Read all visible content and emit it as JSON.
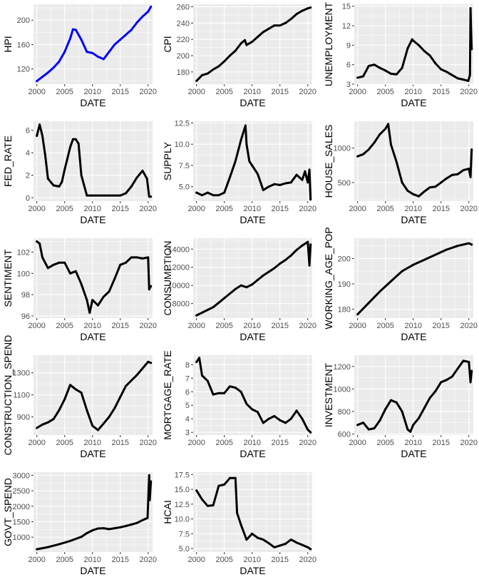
{
  "chart_data": [
    {
      "type": "line",
      "title": "",
      "xlabel": "DATE",
      "ylabel": "HPI",
      "color": "#0000FF",
      "xlim": [
        1999.4,
        2020.8
      ],
      "ylim": [
        95,
        226
      ],
      "xticks": [
        2000,
        2005,
        2010,
        2015,
        2020
      ],
      "yticks": [
        120,
        160,
        200
      ],
      "x": [
        2000,
        2001,
        2002,
        2003,
        2004,
        2005,
        2006,
        2006.5,
        2007,
        2008,
        2009,
        2010,
        2011,
        2012,
        2013,
        2014,
        2015,
        2016,
        2017,
        2018,
        2019,
        2020,
        2020.5
      ],
      "values": [
        100,
        107,
        114,
        122,
        132,
        148,
        170,
        185,
        184,
        168,
        148,
        146,
        140,
        136,
        148,
        160,
        168,
        176,
        184,
        196,
        206,
        214,
        222
      ]
    },
    {
      "type": "line",
      "title": "",
      "xlabel": "DATE",
      "ylabel": "CPI",
      "color": "#000000",
      "xlim": [
        1999.4,
        2020.8
      ],
      "ylim": [
        165,
        263
      ],
      "xticks": [
        2000,
        2005,
        2010,
        2015,
        2020
      ],
      "yticks": [
        180,
        200,
        220,
        240,
        260
      ],
      "x": [
        2000,
        2001,
        2002,
        2003,
        2004,
        2005,
        2006,
        2007,
        2008,
        2008.7,
        2009,
        2010,
        2011,
        2012,
        2013,
        2014,
        2015,
        2016,
        2017,
        2018,
        2019,
        2020,
        2020.5
      ],
      "values": [
        169,
        176,
        178,
        183,
        187,
        193,
        200,
        206,
        215,
        219,
        213,
        217,
        223,
        229,
        233,
        237,
        237,
        240,
        245,
        251,
        255,
        258,
        259
      ]
    },
    {
      "type": "line",
      "title": "",
      "xlabel": "DATE",
      "ylabel": "UNEMPLOYMENT",
      "color": "#000000",
      "xlim": [
        1999.4,
        2020.8
      ],
      "ylim": [
        3,
        15.3
      ],
      "xticks": [
        2000,
        2005,
        2010,
        2015,
        2020
      ],
      "yticks": [
        3,
        6,
        9,
        12,
        15
      ],
      "x": [
        2000,
        2001,
        2002,
        2003,
        2004,
        2005,
        2006,
        2007,
        2008,
        2009,
        2009.8,
        2010,
        2011,
        2012,
        2013,
        2014,
        2015,
        2016,
        2017,
        2018,
        2019,
        2019.9,
        2020.2,
        2020.3,
        2020.4,
        2020.5
      ],
      "values": [
        4.0,
        4.2,
        5.8,
        6.0,
        5.5,
        5.1,
        4.6,
        4.5,
        5.5,
        8.5,
        9.9,
        9.7,
        9.0,
        8.1,
        7.4,
        6.2,
        5.3,
        4.9,
        4.4,
        3.9,
        3.7,
        3.5,
        4.4,
        14.7,
        11.1,
        8.4
      ]
    },
    {
      "type": "line",
      "title": "",
      "xlabel": "DATE",
      "ylabel": "FED_RATE",
      "color": "#000000",
      "xlim": [
        1999.4,
        2020.8
      ],
      "ylim": [
        -0.3,
        6.8
      ],
      "xticks": [
        2000,
        2005,
        2010,
        2015,
        2020
      ],
      "yticks": [
        0,
        2,
        4,
        6
      ],
      "x": [
        2000,
        2000.5,
        2001,
        2001.5,
        2002,
        2003,
        2004,
        2004.5,
        2005,
        2006,
        2006.5,
        2007,
        2007.5,
        2008,
        2009,
        2010,
        2015,
        2016,
        2017,
        2018,
        2019,
        2019.8,
        2020.2,
        2020.5
      ],
      "values": [
        5.5,
        6.5,
        5.5,
        3.8,
        1.7,
        1.1,
        1.0,
        1.4,
        2.5,
        4.5,
        5.2,
        5.2,
        4.8,
        2.0,
        0.2,
        0.2,
        0.2,
        0.4,
        1.0,
        1.8,
        2.4,
        1.7,
        0.1,
        0.1
      ]
    },
    {
      "type": "line",
      "title": "",
      "xlabel": "DATE",
      "ylabel": "SUPPLY",
      "color": "#000000",
      "xlim": [
        1999.4,
        2020.8
      ],
      "ylim": [
        3.3,
        12.7
      ],
      "xticks": [
        2000,
        2005,
        2010,
        2015,
        2020
      ],
      "yticks": [
        5.0,
        7.5,
        10.0,
        12.5
      ],
      "x": [
        2000,
        2001,
        2002,
        2003,
        2004,
        2005,
        2006,
        2007,
        2008,
        2008.8,
        2009,
        2009.5,
        2010,
        2011,
        2012,
        2013,
        2014,
        2015,
        2016,
        2017,
        2018,
        2019,
        2019.5,
        2020,
        2020.3,
        2020.5
      ],
      "values": [
        4.3,
        4.0,
        4.3,
        4.0,
        4.0,
        4.3,
        6.1,
        8.0,
        10.5,
        12.2,
        10.0,
        8.0,
        7.5,
        6.5,
        4.6,
        5.0,
        5.3,
        5.2,
        5.4,
        5.5,
        6.4,
        5.8,
        6.8,
        5.5,
        7.0,
        3.5
      ]
    },
    {
      "type": "line",
      "title": "",
      "xlabel": "DATE",
      "ylabel": "HOUSE_SALES",
      "color": "#000000",
      "xlim": [
        1999.4,
        2020.8
      ],
      "ylim": [
        230,
        1390
      ],
      "xticks": [
        2000,
        2005,
        2010,
        2015,
        2020
      ],
      "yticks": [
        500,
        1000
      ],
      "x": [
        2000,
        2001,
        2002,
        2003,
        2004,
        2005,
        2005.5,
        2006,
        2007,
        2008,
        2009,
        2010,
        2011,
        2012,
        2013,
        2014,
        2015,
        2016,
        2017,
        2018,
        2019,
        2020,
        2020.3,
        2020.5
      ],
      "values": [
        880,
        910,
        980,
        1080,
        1200,
        1280,
        1350,
        1050,
        800,
        500,
        380,
        330,
        300,
        370,
        430,
        440,
        500,
        560,
        610,
        620,
        680,
        700,
        580,
        980
      ]
    },
    {
      "type": "line",
      "title": "",
      "xlabel": "DATE",
      "ylabel": "SENTIMENT",
      "color": "#000000",
      "xlim": [
        1999.4,
        2020.8
      ],
      "ylim": [
        95.8,
        103.3
      ],
      "xticks": [
        2000,
        2005,
        2010,
        2015,
        2020
      ],
      "yticks": [
        96,
        98,
        100,
        102
      ],
      "x": [
        2000,
        2000.5,
        2001,
        2002,
        2003,
        2004,
        2005,
        2006,
        2007,
        2008,
        2009,
        2009.5,
        2010,
        2011,
        2012,
        2013,
        2014,
        2015,
        2016,
        2017,
        2018,
        2019,
        2020,
        2020.2,
        2020.5
      ],
      "values": [
        103.0,
        102.8,
        101.5,
        100.5,
        100.8,
        101.0,
        101.0,
        100.0,
        100.2,
        99.0,
        97.5,
        96.3,
        97.5,
        97.0,
        97.8,
        98.3,
        99.5,
        100.8,
        101.0,
        101.5,
        101.5,
        101.4,
        101.5,
        98.5,
        98.8
      ]
    },
    {
      "type": "line",
      "title": "",
      "xlabel": "DATE",
      "ylabel": "CONSUMPTION",
      "color": "#000000",
      "xlim": [
        1999.4,
        2020.8
      ],
      "ylim": [
        6400,
        15200
      ],
      "xticks": [
        2000,
        2005,
        2010,
        2015,
        2020
      ],
      "yticks": [
        8000,
        10000,
        12000,
        14000
      ],
      "x": [
        2000,
        2001,
        2002,
        2003,
        2004,
        2005,
        2006,
        2007,
        2008,
        2009,
        2010,
        2011,
        2012,
        2013,
        2014,
        2015,
        2016,
        2017,
        2018,
        2019,
        2020,
        2020.3,
        2020.5
      ],
      "values": [
        6700,
        7000,
        7300,
        7600,
        8100,
        8600,
        9100,
        9600,
        10000,
        9800,
        10100,
        10600,
        11100,
        11500,
        11900,
        12400,
        12800,
        13300,
        13900,
        14400,
        14800,
        12200,
        14500
      ]
    },
    {
      "type": "line",
      "title": "",
      "xlabel": "DATE",
      "ylabel": "WORKING_AGE_POP",
      "color": "#000000",
      "xlim": [
        1999.4,
        2020.8
      ],
      "ylim": [
        176.5,
        208
      ],
      "xticks": [
        2000,
        2005,
        2010,
        2015,
        2020
      ],
      "yticks": [
        180,
        190,
        200
      ],
      "x": [
        2000,
        2002,
        2004,
        2006,
        2008,
        2010,
        2012,
        2014,
        2016,
        2018,
        2019,
        2020,
        2020.5
      ],
      "values": [
        178.0,
        182.5,
        187.0,
        191.0,
        195.0,
        197.5,
        199.5,
        201.5,
        203.5,
        205.0,
        205.5,
        206.0,
        205.5
      ]
    },
    {
      "type": "line",
      "title": "",
      "xlabel": "DATE",
      "ylabel": "CONSTRUCTION_SPEND",
      "color": "#000000",
      "xlim": [
        1999.4,
        2020.8
      ],
      "ylim": [
        735,
        1460
      ],
      "xticks": [
        2000,
        2005,
        2010,
        2015,
        2020
      ],
      "yticks": [
        900,
        1100,
        1300
      ],
      "x": [
        2000,
        2001,
        2002,
        2003,
        2004,
        2005,
        2006,
        2007,
        2008,
        2009,
        2010,
        2011,
        2012,
        2013,
        2014,
        2015,
        2016,
        2017,
        2018,
        2019,
        2020,
        2020.5
      ],
      "values": [
        800,
        830,
        850,
        880,
        960,
        1060,
        1190,
        1150,
        1120,
        960,
        820,
        780,
        840,
        900,
        980,
        1080,
        1180,
        1230,
        1280,
        1340,
        1400,
        1390
      ]
    },
    {
      "type": "line",
      "title": "",
      "xlabel": "DATE",
      "ylabel": "MORTGAGE_RATE",
      "color": "#000000",
      "xlim": [
        1999.4,
        2020.8
      ],
      "ylim": [
        2.8,
        8.7
      ],
      "xticks": [
        2000,
        2005,
        2010,
        2015,
        2020
      ],
      "yticks": [
        3,
        4,
        5,
        6,
        7,
        8
      ],
      "x": [
        2000,
        2000.5,
        2001,
        2002,
        2003,
        2004,
        2005,
        2006,
        2007,
        2008,
        2009,
        2010,
        2011,
        2012,
        2013,
        2014,
        2015,
        2016,
        2017,
        2018,
        2019,
        2020,
        2020.5
      ],
      "values": [
        8.2,
        8.5,
        7.2,
        6.8,
        5.8,
        5.9,
        5.9,
        6.4,
        6.3,
        6.0,
        5.1,
        4.7,
        4.5,
        3.7,
        4.0,
        4.2,
        3.9,
        3.7,
        4.0,
        4.6,
        4.0,
        3.2,
        3.0
      ]
    },
    {
      "type": "line",
      "title": "",
      "xlabel": "DATE",
      "ylabel": "INVESTMENT",
      "color": "#000000",
      "xlim": [
        1999.4,
        2020.8
      ],
      "ylim": [
        590,
        1300
      ],
      "xticks": [
        2000,
        2005,
        2010,
        2015,
        2020
      ],
      "yticks": [
        600,
        800,
        1000,
        1200
      ],
      "x": [
        2000,
        2001,
        2002,
        2003,
        2004,
        2005,
        2006,
        2007,
        2008,
        2009,
        2009.5,
        2010,
        2011,
        2012,
        2013,
        2014,
        2015,
        2016,
        2017,
        2018,
        2019,
        2020,
        2020.3,
        2020.5
      ],
      "values": [
        680,
        700,
        640,
        650,
        720,
        820,
        900,
        880,
        800,
        640,
        620,
        680,
        740,
        830,
        920,
        980,
        1060,
        1080,
        1110,
        1180,
        1250,
        1240,
        1060,
        1160
      ]
    },
    {
      "type": "line",
      "title": "",
      "xlabel": "DATE",
      "ylabel": "GOVT_SPEND",
      "color": "#000000",
      "xlim": [
        1999.4,
        2020.8
      ],
      "ylim": [
        520,
        3100
      ],
      "xticks": [
        2000,
        2005,
        2010,
        2015,
        2020
      ],
      "yticks": [
        1000,
        1500,
        2000,
        2500,
        3000
      ],
      "x": [
        2000,
        2002,
        2004,
        2006,
        2008,
        2009,
        2010,
        2011,
        2012,
        2013,
        2014,
        2015,
        2016,
        2017,
        2018,
        2019,
        2019.9,
        2020.2,
        2020.3,
        2020.5
      ],
      "values": [
        610,
        680,
        770,
        880,
        1010,
        1130,
        1220,
        1280,
        1290,
        1260,
        1290,
        1320,
        1360,
        1410,
        1460,
        1550,
        1620,
        3000,
        2200,
        2800
      ]
    },
    {
      "type": "line",
      "title": "",
      "xlabel": "DATE",
      "ylabel": "HCAI",
      "color": "#000000",
      "xlim": [
        1999.4,
        2020.8
      ],
      "ylim": [
        4.4,
        17.9
      ],
      "xticks": [
        2000,
        2005,
        2010,
        2015,
        2020
      ],
      "yticks": [
        5.0,
        7.5,
        10.0,
        12.5,
        15.0,
        17.5
      ],
      "x": [
        2000,
        2001,
        2002,
        2003,
        2004,
        2005,
        2006,
        2007,
        2007.3,
        2008,
        2009,
        2010,
        2011,
        2012,
        2013,
        2014,
        2015,
        2016,
        2017,
        2018,
        2019,
        2020,
        2020.5
      ],
      "values": [
        14.8,
        13.3,
        12.2,
        12.3,
        15.6,
        15.8,
        16.9,
        16.9,
        11.0,
        9.0,
        6.5,
        7.5,
        6.8,
        6.5,
        5.9,
        5.2,
        5.5,
        5.8,
        6.5,
        6.0,
        5.6,
        5.2,
        4.9
      ]
    }
  ]
}
